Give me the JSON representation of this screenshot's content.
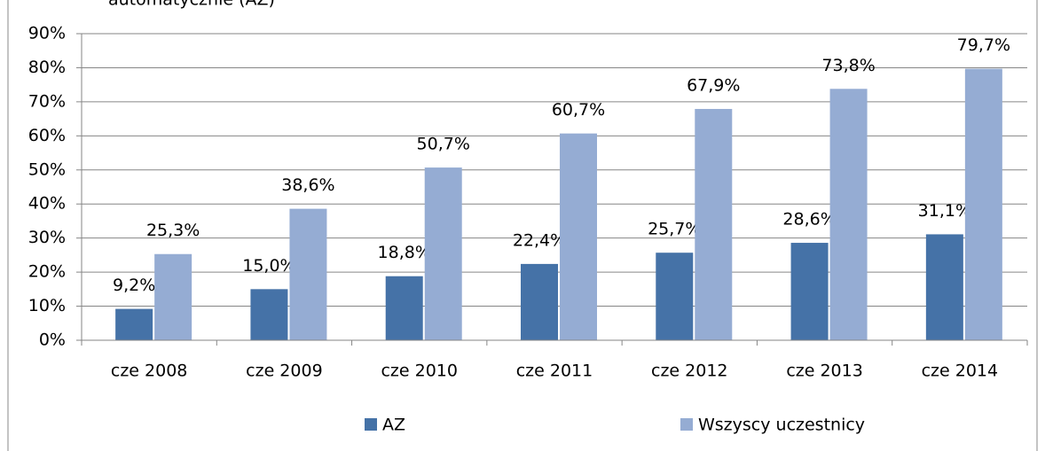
{
  "chart_data": {
    "type": "bar",
    "title": "automatycznie (AZ)",
    "categories": [
      "cze 2008",
      "cze 2009",
      "cze 2010",
      "cze 2011",
      "cze 2012",
      "cze 2013",
      "cze 2014"
    ],
    "series": [
      {
        "name": "AZ",
        "color": "#4572a7",
        "values": [
          9.2,
          15.0,
          18.8,
          22.4,
          25.7,
          28.6,
          31.1
        ],
        "value_labels": [
          "9,2%",
          "15,0%",
          "18,8%",
          "22,4%",
          "25,7%",
          "28,6%",
          "31,1%"
        ]
      },
      {
        "name": "Wszyscy uczestnicy",
        "color": "#95acd3",
        "values": [
          25.3,
          38.6,
          50.7,
          60.7,
          67.9,
          73.8,
          79.7
        ],
        "value_labels": [
          "25,3%",
          "38,6%",
          "50,7%",
          "60,7%",
          "67,9%",
          "73,8%",
          "79,7%"
        ]
      }
    ],
    "ylim": [
      0,
      90
    ],
    "yticks": [
      {
        "value": 0,
        "label": "0%"
      },
      {
        "value": 10,
        "label": "10%"
      },
      {
        "value": 20,
        "label": "20%"
      },
      {
        "value": 30,
        "label": "30%"
      },
      {
        "value": 40,
        "label": "40%"
      },
      {
        "value": 50,
        "label": "50%"
      },
      {
        "value": 60,
        "label": "60%"
      },
      {
        "value": 70,
        "label": "70%"
      },
      {
        "value": 80,
        "label": "80%"
      },
      {
        "value": 90,
        "label": "90%"
      }
    ],
    "grid": true,
    "legend": "bottom"
  }
}
